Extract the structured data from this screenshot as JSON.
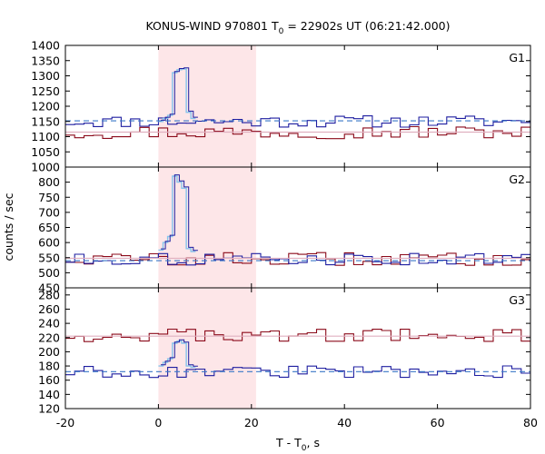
{
  "chart_data": {
    "type": "line",
    "title_main": "KONUS-WIND 970801 T",
    "title_sub": "0",
    "title_rest": " = 22902s UT (06:21:42.000)",
    "xlabel_main": "T - T",
    "xlabel_sub": "0",
    "xlabel_rest": ", s",
    "ylabel": "counts / sec",
    "xlim": [
      -20,
      80
    ],
    "x_ticks": [
      "-20",
      "0",
      "20",
      "40",
      "60",
      "80"
    ],
    "shaded_interval": [
      0,
      21
    ],
    "colors": {
      "blue_series": "#1e1ea0",
      "red_series": "#8b0a1a",
      "burst_light": "#87c3eb",
      "background_fit": "#3a78c8",
      "red_fit": "#e0b0c0",
      "shade": "#fde6e8"
    },
    "panels": [
      {
        "name": "G1",
        "ylim": [
          1000,
          1400
        ],
        "y_ticks": [
          "1000",
          "1050",
          "1100",
          "1150",
          "1200",
          "1250",
          "1300",
          "1350",
          "1400"
        ],
        "blue_base": 1150,
        "red_base": 1115,
        "blue_fit": 1152,
        "red_fit": 1115,
        "burst": [
          [
            0,
            1150
          ],
          [
            1,
            1160
          ],
          [
            2,
            1170
          ],
          [
            3,
            1310
          ],
          [
            4,
            1320
          ],
          [
            5,
            1322
          ],
          [
            6,
            1180
          ],
          [
            7,
            1160
          ]
        ]
      },
      {
        "name": "G2",
        "ylim": [
          450,
          850
        ],
        "y_ticks": [
          "450",
          "500",
          "550",
          "600",
          "650",
          "700",
          "750",
          "800"
        ],
        "blue_base": 545,
        "red_base": 545,
        "blue_fit": 540,
        "red_fit": 548,
        "burst": [
          [
            0,
            575
          ],
          [
            1,
            600
          ],
          [
            2,
            620
          ],
          [
            3,
            820
          ],
          [
            4,
            800
          ],
          [
            5,
            780
          ],
          [
            6,
            580
          ],
          [
            7,
            570
          ]
        ]
      },
      {
        "name": "G3",
        "ylim": [
          120,
          290
        ],
        "y_ticks": [
          "120",
          "140",
          "160",
          "180",
          "200",
          "220",
          "240",
          "260",
          "280"
        ],
        "blue_base": 172,
        "red_base": 223,
        "blue_fit": 172,
        "red_fit": 222,
        "burst": [
          [
            0,
            180
          ],
          [
            1,
            185
          ],
          [
            2,
            190
          ],
          [
            3,
            212
          ],
          [
            4,
            215
          ],
          [
            5,
            212
          ],
          [
            6,
            180
          ],
          [
            7,
            178
          ]
        ]
      }
    ]
  }
}
